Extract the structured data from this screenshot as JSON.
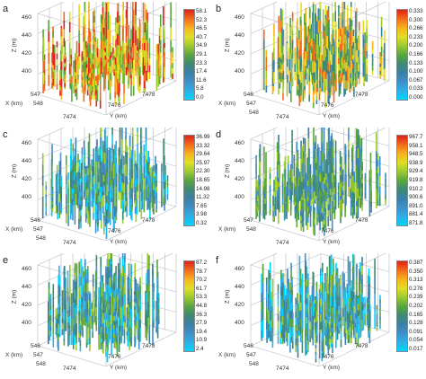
{
  "panels": [
    {
      "letter": "a",
      "z_label": "Z (m)",
      "x_label": "X (km)",
      "y_label": "Y (km)",
      "z_ticks": [
        "460",
        "440",
        "420",
        "400"
      ],
      "x_ticks": [
        "547",
        "548"
      ],
      "y_ticks": [
        "7474",
        "7476",
        "7478"
      ],
      "colorbar": [
        "58.1",
        "52.3",
        "46.5",
        "40.7",
        "34.9",
        "29.1",
        "23.3",
        "17.4",
        "11.6",
        "5.8",
        "0.0"
      ]
    },
    {
      "letter": "b",
      "z_label": "Z (m)",
      "x_label": "X (km)",
      "y_label": "Y (km)",
      "z_ticks": [
        "460",
        "440",
        "420",
        "400"
      ],
      "x_ticks": [
        "546",
        "547",
        "548"
      ],
      "y_ticks": [
        "7474",
        "7476",
        "7478"
      ],
      "colorbar": [
        "0.333",
        "0.300",
        "0.266",
        "0.233",
        "0.200",
        "0.166",
        "0.133",
        "0.100",
        "0.067",
        "0.033",
        "0.000"
      ]
    },
    {
      "letter": "c",
      "z_label": "Z (m)",
      "x_label": "X (km)",
      "y_label": "Y (km)",
      "z_ticks": [
        "460",
        "440",
        "420",
        "400"
      ],
      "x_ticks": [
        "546",
        "547",
        "548"
      ],
      "y_ticks": [
        "7474",
        "7476",
        "7478"
      ],
      "colorbar": [
        "36.99",
        "33.32",
        "29.64",
        "25.97",
        "22.30",
        "18.65",
        "14.98",
        "11.32",
        "7.65",
        "3.98",
        "0.32"
      ]
    },
    {
      "letter": "d",
      "z_label": "Z (m)",
      "x_label": "X (km)",
      "y_label": "Y (km)",
      "z_ticks": [
        "460",
        "440",
        "420",
        "400"
      ],
      "x_ticks": [
        "547",
        "548"
      ],
      "y_ticks": [
        "7474",
        "7476",
        "7478"
      ],
      "colorbar": [
        "967.7",
        "958.1",
        "948.5",
        "938.9",
        "929.4",
        "919.8",
        "910.2",
        "900.6",
        "891.0",
        "881.4",
        "871.8"
      ]
    },
    {
      "letter": "e",
      "z_label": "Z (m)",
      "x_label": "X (km)",
      "y_label": "Y (km)",
      "z_ticks": [
        "460",
        "440",
        "420",
        "400"
      ],
      "x_ticks": [
        "546",
        "547",
        "548"
      ],
      "y_ticks": [
        "7474",
        "7476",
        "7478"
      ],
      "colorbar": [
        "87.2",
        "78.7",
        "70.2",
        "61.7",
        "53.3",
        "44.8",
        "36.3",
        "27.9",
        "19.4",
        "10.9",
        "2.4"
      ]
    },
    {
      "letter": "f",
      "z_label": "Z (m)",
      "x_label": "X (km)",
      "y_label": "Y (km)",
      "z_ticks": [
        "460",
        "440",
        "420",
        "400"
      ],
      "x_ticks": [
        "546",
        "547",
        "548"
      ],
      "y_ticks": [
        "7474",
        "7476",
        "7478"
      ],
      "colorbar": [
        "0.387",
        "0.350",
        "0.313",
        "0.276",
        "0.239",
        "0.202",
        "0.165",
        "0.128",
        "0.091",
        "0.054",
        "0.017"
      ]
    }
  ],
  "colors": {
    "colormap": [
      "#00d5ff",
      "#2db0e6",
      "#3f8fc9",
      "#3b7fa8",
      "#3d8a70",
      "#5aa53f",
      "#9ccb2f",
      "#e0df25",
      "#f7b21d",
      "#f36a1c",
      "#e0201a"
    ],
    "box": "#b9b9c4"
  },
  "palette_bias": [
    "warm",
    "mid",
    "cool",
    "teal",
    "cool",
    "cool"
  ]
}
